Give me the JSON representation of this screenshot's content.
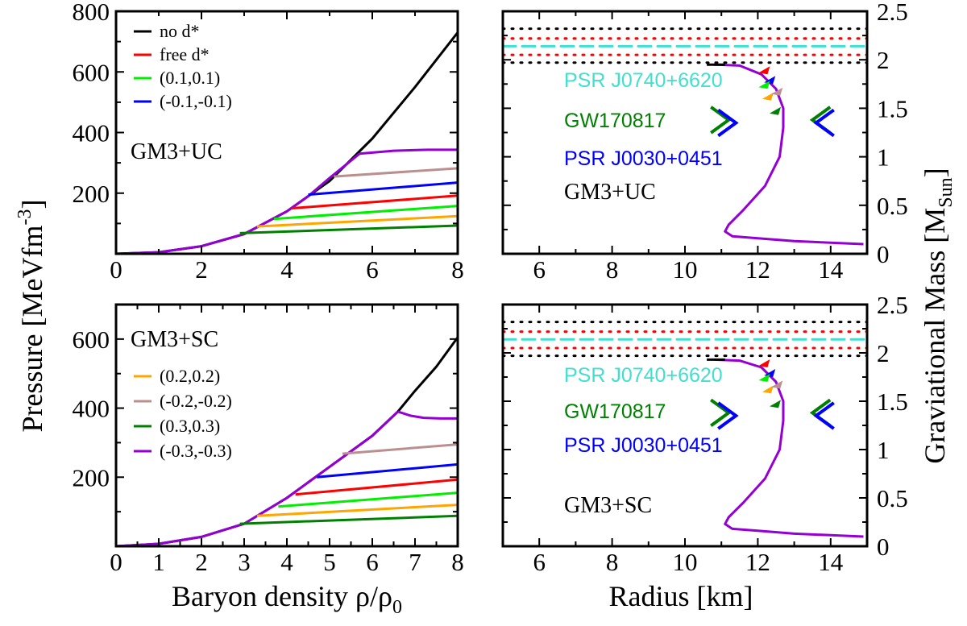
{
  "labels": {
    "top_left_model": "GM3+UC",
    "bottom_left_model": "GM3+SC",
    "top_right_model": "GM3+UC",
    "bottom_right_model": "GM3+SC",
    "obs_psr0740": "PSR J0740+6620",
    "obs_gw": "GW170817",
    "obs_psr0030": "PSR J0030+0451",
    "y_left": "Pressure [MeVfm",
    "y_left_sup": "-3",
    "y_left_end": "]",
    "x_left": "Baryon density ρ/ρ",
    "x_left_sub": "0",
    "x_right": "Radius [km]",
    "y_right": "Graviational Mass [M",
    "y_right_sub": "Sun",
    "y_right_end": "]"
  },
  "legend_top": [
    {
      "label": "no d*",
      "color": "#000000"
    },
    {
      "label": "free d*",
      "color": "#ff0000"
    },
    {
      "label": "(0.1,0.1)",
      "color": "#00ee00"
    },
    {
      "label": "(-0.1,-0.1)",
      "color": "#0000ff"
    }
  ],
  "legend_bottom": [
    {
      "label": "(0.2,0.2)",
      "color": "#ffa500"
    },
    {
      "label": "(-0.2,-0.2)",
      "color": "#bc8f8f"
    },
    {
      "label": "(0.3,0.3)",
      "color": "#008000"
    },
    {
      "label": "(-0.3,-0.3)",
      "color": "#9400d3"
    }
  ],
  "chart_data": [
    {
      "type": "line",
      "panel": "top-left",
      "xlabel": "Baryon density ρ/ρ0",
      "ylabel": "Pressure [MeVfm^-3]",
      "xlim": [
        0,
        8
      ],
      "ylim": [
        0,
        800
      ],
      "xticks": [
        0,
        2,
        4,
        6,
        8
      ],
      "yticks": [
        200,
        400,
        600,
        800
      ],
      "annotation": "GM3+UC",
      "series": [
        {
          "name": "no d*",
          "color": "#000000",
          "x": [
            0,
            1,
            2,
            3,
            4,
            5,
            6,
            7,
            8
          ],
          "y": [
            0,
            5,
            25,
            65,
            140,
            240,
            380,
            550,
            730
          ]
        },
        {
          "name": "hadronic",
          "color": "#9400d3",
          "x": [
            0,
            1,
            2,
            3,
            4,
            4.5,
            5,
            5.7
          ],
          "y": [
            0,
            5,
            25,
            65,
            140,
            190,
            250,
            330
          ]
        },
        {
          "name": "free d*",
          "color": "#ff0000",
          "x": [
            4.1,
            8
          ],
          "y": [
            150,
            192
          ]
        },
        {
          "name": "(0.1,0.1)",
          "color": "#00ee00",
          "x": [
            3.7,
            8
          ],
          "y": [
            115,
            158
          ]
        },
        {
          "name": "(-0.1,-0.1)",
          "color": "#0000ff",
          "x": [
            4.5,
            8
          ],
          "y": [
            195,
            235
          ]
        },
        {
          "name": "(0.2,0.2)",
          "color": "#ffa500",
          "x": [
            3.3,
            8
          ],
          "y": [
            90,
            124
          ]
        },
        {
          "name": "(-0.2,-0.2)",
          "color": "#bc8f8f",
          "x": [
            5.1,
            8
          ],
          "y": [
            255,
            282
          ]
        },
        {
          "name": "(0.3,0.3)",
          "color": "#008000",
          "x": [
            2.9,
            8
          ],
          "y": [
            68,
            93
          ]
        },
        {
          "name": "(-0.3,-0.3)",
          "color": "#9400d3",
          "x": [
            5.7,
            6.5,
            7.3,
            8
          ],
          "y": [
            330,
            340,
            343,
            343
          ]
        }
      ]
    },
    {
      "type": "line",
      "panel": "bottom-left",
      "xlabel": "Baryon density ρ/ρ0",
      "ylabel": "Pressure [MeVfm^-3]",
      "xlim": [
        0,
        8
      ],
      "ylim": [
        0,
        700
      ],
      "xticks": [
        0,
        1,
        2,
        3,
        4,
        5,
        6,
        7,
        8
      ],
      "yticks": [
        200,
        400,
        600
      ],
      "annotation": "GM3+SC",
      "series": [
        {
          "name": "no d*",
          "color": "#000000",
          "x": [
            0,
            1,
            2,
            3,
            4,
            5,
            6,
            6.6,
            7,
            7.5,
            8
          ],
          "y": [
            0,
            7,
            27,
            65,
            140,
            230,
            320,
            390,
            450,
            520,
            605
          ]
        },
        {
          "name": "hadronic",
          "color": "#9400d3",
          "x": [
            0,
            1,
            2,
            3,
            4,
            5,
            6,
            6.6
          ],
          "y": [
            0,
            7,
            27,
            65,
            140,
            230,
            320,
            390
          ]
        },
        {
          "name": "free d*",
          "color": "#ff0000",
          "x": [
            4.2,
            8
          ],
          "y": [
            150,
            193
          ]
        },
        {
          "name": "(0.1,0.1)",
          "color": "#00ee00",
          "x": [
            3.8,
            8
          ],
          "y": [
            115,
            155
          ]
        },
        {
          "name": "(-0.1,-0.1)",
          "color": "#0000ff",
          "x": [
            4.7,
            8
          ],
          "y": [
            200,
            237
          ]
        },
        {
          "name": "(0.2,0.2)",
          "color": "#ffa500",
          "x": [
            3.3,
            8
          ],
          "y": [
            88,
            120
          ]
        },
        {
          "name": "(-0.2,-0.2)",
          "color": "#bc8f8f",
          "x": [
            5.3,
            8
          ],
          "y": [
            268,
            295
          ]
        },
        {
          "name": "(0.3,0.3)",
          "color": "#008000",
          "x": [
            2.9,
            8
          ],
          "y": [
            65,
            88
          ]
        },
        {
          "name": "(-0.3,-0.3)",
          "color": "#9400d3",
          "x": [
            6.6,
            6.9,
            7.2,
            7.6,
            8
          ],
          "y": [
            390,
            378,
            372,
            370,
            370
          ]
        }
      ]
    },
    {
      "type": "line",
      "panel": "top-right",
      "xlabel": "Radius [km]",
      "ylabel": "Graviational Mass [M_Sun]",
      "xlim": [
        5,
        15
      ],
      "ylim": [
        0,
        2.5
      ],
      "xticks": [
        6,
        8,
        10,
        12,
        14
      ],
      "yticks": [
        0,
        0.5,
        1,
        1.5,
        2,
        2.5
      ],
      "annotation": "GM3+UC",
      "bands": [
        {
          "name": "PSR J0740+6620 dotted outer",
          "color": "#000000",
          "y": [
            1.97,
            2.32
          ]
        },
        {
          "name": "PSR J0740+6620 dotted inner",
          "color": "#ff0000",
          "y": [
            2.05,
            2.22
          ]
        },
        {
          "name": "PSR J0740+6620 central",
          "color": "#40e0d0",
          "y": [
            2.14
          ]
        }
      ],
      "series": [
        {
          "name": "M-R curve",
          "color": "#9400d3",
          "x": [
            14.9,
            13,
            12,
            11.3,
            11.1,
            11.2,
            11.6,
            12.2,
            12.6,
            12.7,
            12.7,
            12.5,
            12.1,
            11.5,
            10.8
          ],
          "y": [
            0.1,
            0.13,
            0.16,
            0.18,
            0.23,
            0.3,
            0.45,
            0.7,
            1.0,
            1.3,
            1.5,
            1.7,
            1.85,
            1.94,
            1.95
          ]
        },
        {
          "name": "no d* branch",
          "color": "#000000",
          "x": [
            10.6,
            11.1
          ],
          "y": [
            1.95,
            1.95
          ]
        }
      ],
      "markers": [
        {
          "name": "GW170817 green left",
          "color": "#008000",
          "x": 11.2,
          "y": 1.38
        },
        {
          "name": "GW170817 blue left",
          "color": "#0000ff",
          "x": 11.4,
          "y": 1.35
        },
        {
          "name": "GW170817 green right",
          "color": "#008000",
          "x": 13.5,
          "y": 1.38
        },
        {
          "name": "GW170817 blue right",
          "color": "#0000ff",
          "x": 13.6,
          "y": 1.35
        }
      ]
    },
    {
      "type": "line",
      "panel": "bottom-right",
      "xlabel": "Radius [km]",
      "ylabel": "Graviational Mass [M_Sun]",
      "xlim": [
        5,
        15
      ],
      "ylim": [
        0,
        2.5
      ],
      "xticks": [
        6,
        8,
        10,
        12,
        14
      ],
      "yticks": [
        0,
        0.5,
        1,
        1.5,
        2,
        2.5
      ],
      "annotation": "GM3+SC",
      "bands": [
        {
          "name": "PSR J0740+6620 dotted outer",
          "color": "#000000",
          "y": [
            1.97,
            2.32
          ]
        },
        {
          "name": "PSR J0740+6620 dotted inner",
          "color": "#ff0000",
          "y": [
            2.05,
            2.22
          ]
        },
        {
          "name": "PSR J0740+6620 central",
          "color": "#40e0d0",
          "y": [
            2.14
          ]
        }
      ],
      "series": [
        {
          "name": "M-R curve",
          "color": "#9400d3",
          "x": [
            14.9,
            13,
            12,
            11.3,
            11.1,
            11.2,
            11.6,
            12.2,
            12.6,
            12.7,
            12.7,
            12.5,
            12.1,
            11.5,
            10.8
          ],
          "y": [
            0.1,
            0.13,
            0.16,
            0.18,
            0.23,
            0.3,
            0.45,
            0.7,
            1.0,
            1.3,
            1.5,
            1.7,
            1.85,
            1.92,
            1.93
          ]
        },
        {
          "name": "no d* branch",
          "color": "#000000",
          "x": [
            10.6,
            11.1
          ],
          "y": [
            1.93,
            1.93
          ]
        }
      ],
      "markers": [
        {
          "name": "GW170817 green left",
          "color": "#008000",
          "x": 11.2,
          "y": 1.38
        },
        {
          "name": "GW170817 blue left",
          "color": "#0000ff",
          "x": 11.4,
          "y": 1.35
        },
        {
          "name": "GW170817 green right",
          "color": "#008000",
          "x": 13.5,
          "y": 1.38
        },
        {
          "name": "GW170817 blue right",
          "color": "#0000ff",
          "x": 13.6,
          "y": 1.35
        }
      ]
    }
  ]
}
